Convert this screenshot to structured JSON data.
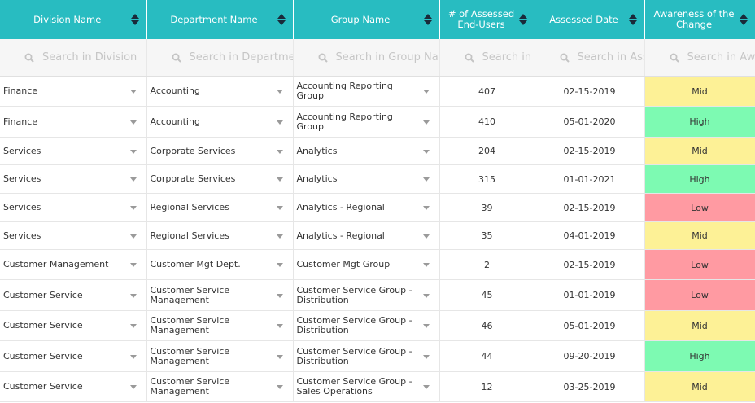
{
  "columns": [
    {
      "label": "Division Name",
      "search_placeholder": "Search in Division"
    },
    {
      "label": "Department Name",
      "search_placeholder": "Search in Department"
    },
    {
      "label": "Group Name",
      "search_placeholder": "Search in Group Name"
    },
    {
      "label": "# of Assessed End-Users",
      "search_placeholder": "Search in # of Assessed End-Users"
    },
    {
      "label": "Assessed Date",
      "search_placeholder": "Search in Assessed Date"
    },
    {
      "label": "Awareness of the Change",
      "search_placeholder": "Search in Awareness of the Change"
    }
  ],
  "rows": [
    {
      "division": "Finance",
      "department": "Accounting",
      "group": "Accounting Reporting Group",
      "count": "407",
      "date": "02-15-2019",
      "awareness": "Mid"
    },
    {
      "division": "Finance",
      "department": "Accounting",
      "group": "Accounting Reporting Group",
      "count": "410",
      "date": "05-01-2020",
      "awareness": "High"
    },
    {
      "division": "Services",
      "department": "Corporate Services",
      "group": "Analytics",
      "count": "204",
      "date": "02-15-2019",
      "awareness": "Mid"
    },
    {
      "division": "Services",
      "department": "Corporate Services",
      "group": "Analytics",
      "count": "315",
      "date": "01-01-2021",
      "awareness": "High"
    },
    {
      "division": "Services",
      "department": "Regional Services",
      "group": "Analytics - Regional",
      "count": "39",
      "date": "02-15-2019",
      "awareness": "Low"
    },
    {
      "division": "Services",
      "department": "Regional Services",
      "group": "Analytics - Regional",
      "count": "35",
      "date": "04-01-2019",
      "awareness": "Mid"
    },
    {
      "division": "Customer Management",
      "department": "Customer Mgt Dept.",
      "group": "Customer Mgt Group",
      "count": "2",
      "date": "02-15-2019",
      "awareness": "Low"
    },
    {
      "division": "Customer Service",
      "department": "Customer Service Management",
      "group": "Customer Service Group - Distribution",
      "count": "45",
      "date": "01-01-2019",
      "awareness": "Low"
    },
    {
      "division": "Customer Service",
      "department": "Customer Service Management",
      "group": "Customer Service Group - Distribution",
      "count": "46",
      "date": "05-01-2019",
      "awareness": "Mid"
    },
    {
      "division": "Customer Service",
      "department": "Customer Service Management",
      "group": "Customer Service Group - Distribution",
      "count": "44",
      "date": "09-20-2019",
      "awareness": "High"
    },
    {
      "division": "Customer Service",
      "department": "Customer Service Management",
      "group": "Customer Service Group - Sales Operations",
      "count": "12",
      "date": "03-25-2019",
      "awareness": "Mid"
    }
  ],
  "row_heights": [
    37,
    38,
    34,
    35,
    35,
    34,
    37,
    38,
    37,
    38,
    37
  ],
  "colors": {
    "header_bg": "#28bcc1",
    "awareness_low": "#ff9aa2",
    "awareness_mid": "#fdf196",
    "awareness_high": "#7dfab2"
  },
  "icons": {
    "sort": "sort-arrows-icon",
    "search": "search-icon",
    "dropdown": "chevron-down-icon"
  }
}
